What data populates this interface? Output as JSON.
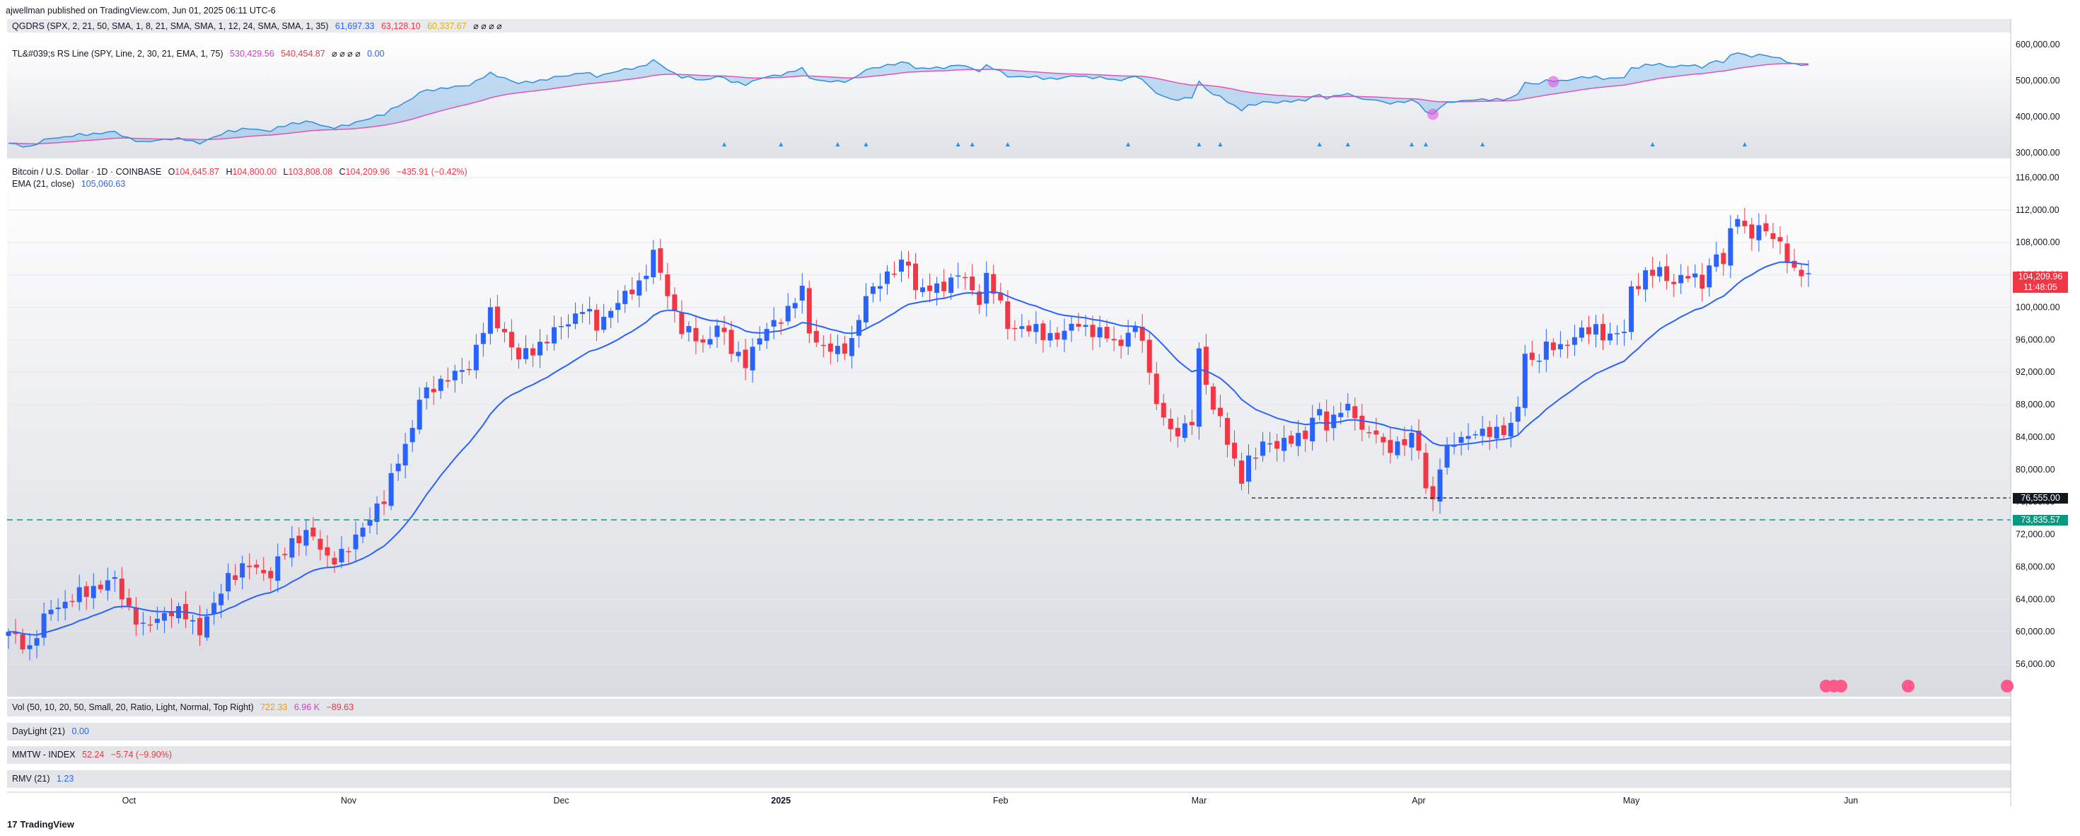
{
  "header": {
    "published": "ajwellman published on TradingView.com, Jun 01, 2025 06:11 UTC-6"
  },
  "qgdrs": {
    "title": "QGDRS (SPX, 2, 21, 50, SMA, 1, 8, 21, SMA, SMA, 1, 12, 24, SMA, SMA, 1, 35)",
    "v1": "61,697.33",
    "v2": "63,128.10",
    "v3": "60,337.67",
    "icons": "⌀ ⌀ ⌀ ⌀",
    "colors": {
      "v1": "#2962ff",
      "v2": "#f23645",
      "v3": "#f5c400"
    }
  },
  "rs": {
    "title": "TL&#039;s RS Line (SPY, Line, 2, 30, 21, EMA, 1, 75)",
    "v1": "530,429.56",
    "v2": "540,454.87",
    "icons": "⌀ ⌀ ⌀ ⌀",
    "v3": "0.00",
    "axis": [
      "600,000.00",
      "500,000.00",
      "400,000.00",
      "300,000.00"
    ]
  },
  "main": {
    "symbol": "Bitcoin / U.S. Dollar · 1D · COINBASE",
    "o_label": "O",
    "o": "104,645.87",
    "h_label": "H",
    "h": "104,800.00",
    "l_label": "L",
    "l": "103,808.08",
    "c_label": "C",
    "c": "104,209.96",
    "chg": "−435.91 (−0.42%)",
    "ema_label": "EMA (21, close)",
    "ema_value": "105,060.63",
    "last_price": "104,209.96",
    "countdown": "11:48:05",
    "level_1": "76,555.00",
    "level_2": "73,835.57"
  },
  "vol": {
    "label": "Vol (50, 10, 20, 50, Small, 20, Ratio, Light, Normal, Top Right)",
    "v1": "722.33",
    "v2": "6.96 K",
    "v3": "−89.63"
  },
  "daylight": {
    "label": "DayLight (21)",
    "value": "0.00"
  },
  "mmtw": {
    "label": "MMTW - INDEX",
    "value": "52.24",
    "chg": "−5.74 (−9.90%)"
  },
  "rmv": {
    "label": "RMV (21)",
    "value": "1.23"
  },
  "footer": {
    "logo": "TradingView"
  },
  "chart_data": {
    "type": "candlestick",
    "title": "Bitcoin / U.S. Dollar · 1D · COINBASE",
    "ylim": [
      52000,
      118000
    ],
    "y_ticks": [
      56000,
      60000,
      64000,
      68000,
      72000,
      76000,
      80000,
      84000,
      88000,
      92000,
      96000,
      100000,
      104000,
      108000,
      112000,
      116000
    ],
    "y_tick_labels": [
      "56,000.00",
      "60,000.00",
      "64,000.00",
      "68,000.00",
      "72,000.00",
      "76,000.00",
      "80,000.00",
      "84,000.00",
      "88,000.00",
      "92,000.00",
      "96,000.00",
      "100,000.00",
      "104,000.00",
      "108,000.00",
      "112,000.00",
      "116,000.00"
    ],
    "x_ticks": [
      {
        "label": "Oct",
        "day": 17,
        "bold": false
      },
      {
        "label": "Nov",
        "day": 48,
        "bold": false
      },
      {
        "label": "Dec",
        "day": 78,
        "bold": false
      },
      {
        "label": "2025",
        "day": 109,
        "bold": true
      },
      {
        "label": "Feb",
        "day": 140,
        "bold": false
      },
      {
        "label": "Mar",
        "day": 168,
        "bold": false
      },
      {
        "label": "Apr",
        "day": 199,
        "bold": false
      },
      {
        "label": "May",
        "day": 229,
        "bold": false
      },
      {
        "label": "Jun",
        "day": 260,
        "bold": false
      }
    ],
    "start_date": "2024-09-14",
    "close_anchors": [
      [
        0,
        60000
      ],
      [
        3,
        58000
      ],
      [
        6,
        63000
      ],
      [
        9,
        64000
      ],
      [
        12,
        65500
      ],
      [
        15,
        66200
      ],
      [
        17,
        63000
      ],
      [
        19,
        60200
      ],
      [
        22,
        62500
      ],
      [
        25,
        62000
      ],
      [
        27,
        60300
      ],
      [
        29,
        63000
      ],
      [
        31,
        67000
      ],
      [
        34,
        68000
      ],
      [
        37,
        67200
      ],
      [
        40,
        71000
      ],
      [
        42,
        72500
      ],
      [
        45,
        69000
      ],
      [
        48,
        70000
      ],
      [
        51,
        74500
      ],
      [
        53,
        76000
      ],
      [
        55,
        81500
      ],
      [
        57,
        85000
      ],
      [
        58,
        88500
      ],
      [
        60,
        90500
      ],
      [
        63,
        91500
      ],
      [
        65,
        93000
      ],
      [
        67,
        97200
      ],
      [
        68,
        99000
      ],
      [
        70,
        97000
      ],
      [
        72,
        93500
      ],
      [
        75,
        95500
      ],
      [
        78,
        97500
      ],
      [
        81,
        100000
      ],
      [
        83,
        97500
      ],
      [
        85,
        100000
      ],
      [
        87,
        101200
      ],
      [
        89,
        103000
      ],
      [
        91,
        106500
      ],
      [
        93,
        101500
      ],
      [
        95,
        97500
      ],
      [
        98,
        95300
      ],
      [
        100,
        98000
      ],
      [
        102,
        94500
      ],
      [
        104,
        93500
      ],
      [
        106,
        96000
      ],
      [
        108,
        98300
      ],
      [
        110,
        99500
      ],
      [
        112,
        102000
      ],
      [
        113,
        97300
      ],
      [
        115,
        94800
      ],
      [
        117,
        94500
      ],
      [
        119,
        96000
      ],
      [
        121,
        101000
      ],
      [
        123,
        103500
      ],
      [
        125,
        104500
      ],
      [
        127,
        105500
      ],
      [
        128,
        102500
      ],
      [
        131,
        102000
      ],
      [
        134,
        104300
      ],
      [
        137,
        101000
      ],
      [
        138,
        104000
      ],
      [
        139,
        102300
      ],
      [
        141,
        97500
      ],
      [
        143,
        97800
      ],
      [
        146,
        96500
      ],
      [
        149,
        96800
      ],
      [
        151,
        98000
      ],
      [
        153,
        97200
      ],
      [
        155,
        96200
      ],
      [
        157,
        95500
      ],
      [
        158,
        97400
      ],
      [
        160,
        96200
      ],
      [
        161,
        91500
      ],
      [
        163,
        86300
      ],
      [
        164,
        84500
      ],
      [
        165,
        84200
      ],
      [
        167,
        86500
      ],
      [
        168,
        94300
      ],
      [
        169,
        90500
      ],
      [
        170,
        87000
      ],
      [
        171,
        86800
      ],
      [
        173,
        80700
      ],
      [
        174,
        78500
      ],
      [
        175,
        81000
      ],
      [
        177,
        83500
      ],
      [
        179,
        82500
      ],
      [
        181,
        84200
      ],
      [
        183,
        84000
      ],
      [
        185,
        87500
      ],
      [
        186,
        85500
      ],
      [
        188,
        87300
      ],
      [
        190,
        87000
      ],
      [
        191,
        85000
      ],
      [
        193,
        84200
      ],
      [
        194,
        82600
      ],
      [
        196,
        83200
      ],
      [
        198,
        83800
      ],
      [
        199,
        82200
      ],
      [
        200,
        78200
      ],
      [
        201,
        76200
      ],
      [
        202,
        80500
      ],
      [
        204,
        83500
      ],
      [
        206,
        84500
      ],
      [
        208,
        84200
      ],
      [
        210,
        85000
      ],
      [
        212,
        85100
      ],
      [
        213,
        87500
      ],
      [
        214,
        94500
      ],
      [
        215,
        93500
      ],
      [
        217,
        94800
      ],
      [
        219,
        95200
      ],
      [
        221,
        96500
      ],
      [
        223,
        97000
      ],
      [
        224,
        97500
      ],
      [
        226,
        96300
      ],
      [
        228,
        96900
      ],
      [
        229,
        102500
      ],
      [
        231,
        103800
      ],
      [
        233,
        104400
      ],
      [
        235,
        103200
      ],
      [
        237,
        103700
      ],
      [
        239,
        103300
      ],
      [
        241,
        106500
      ],
      [
        242,
        105000
      ],
      [
        243,
        109500
      ],
      [
        244,
        111800
      ],
      [
        245,
        109500
      ],
      [
        246,
        108800
      ],
      [
        248,
        109800
      ],
      [
        249,
        108800
      ],
      [
        250,
        107900
      ],
      [
        251,
        105600
      ],
      [
        252,
        104000
      ],
      [
        253,
        104700
      ],
      [
        254,
        104210
      ]
    ]
  }
}
